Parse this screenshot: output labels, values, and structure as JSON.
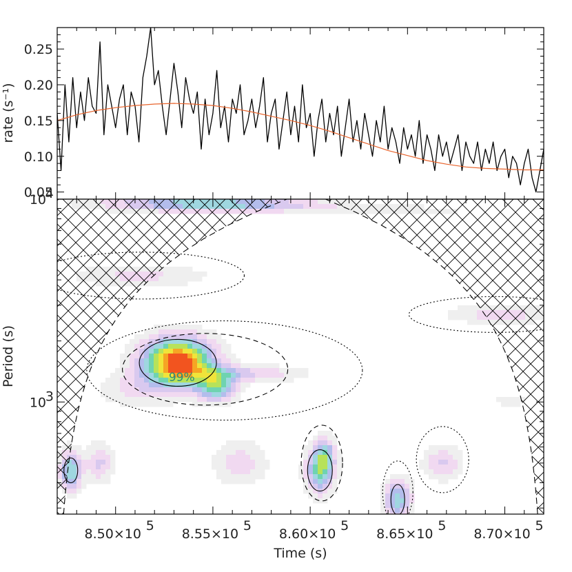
{
  "chart_data": [
    {
      "type": "line",
      "panel": "light curve",
      "xlabel": "",
      "ylabel": "rate (s⁻¹)",
      "xlim": [
        847000,
        872000
      ],
      "ylim": [
        0.04,
        0.28
      ],
      "yticks": [
        {
          "v": 0.05,
          "label": "0.05"
        },
        {
          "v": 0.1,
          "label": "0.10"
        },
        {
          "v": 0.15,
          "label": "0.15"
        },
        {
          "v": 0.2,
          "label": "0.20"
        },
        {
          "v": 0.25,
          "label": "0.25"
        }
      ],
      "series": [
        {
          "kind": "rate",
          "color": "#000000",
          "x": [
            847000,
            847200,
            847400,
            847600,
            847800,
            848000,
            848200,
            848400,
            848600,
            848800,
            849000,
            849200,
            849400,
            849600,
            849800,
            850000,
            850200,
            850400,
            850600,
            850800,
            851000,
            851200,
            851400,
            851600,
            851800,
            852000,
            852200,
            852400,
            852600,
            852800,
            853000,
            853200,
            853400,
            853600,
            853800,
            854000,
            854200,
            854400,
            854600,
            854800,
            855000,
            855200,
            855400,
            855600,
            855800,
            856000,
            856200,
            856400,
            856600,
            856800,
            857000,
            857200,
            857400,
            857600,
            857800,
            858000,
            858200,
            858400,
            858600,
            858800,
            859000,
            859200,
            859400,
            859600,
            859800,
            860000,
            860200,
            860400,
            860600,
            860800,
            861000,
            861200,
            861400,
            861600,
            861800,
            862000,
            862200,
            862400,
            862600,
            862800,
            863000,
            863200,
            863400,
            863600,
            863800,
            864000,
            864200,
            864400,
            864600,
            864800,
            865000,
            865200,
            865400,
            865600,
            865800,
            866000,
            866200,
            866400,
            866600,
            866800,
            867000,
            867200,
            867400,
            867600,
            867800,
            868000,
            868200,
            868400,
            868600,
            868800,
            869000,
            869200,
            869400,
            869600,
            869800,
            870000,
            870200,
            870400,
            870600,
            870800,
            871000,
            871200,
            871400,
            871600,
            871800,
            872000
          ],
          "y": [
            0.16,
            0.08,
            0.2,
            0.12,
            0.21,
            0.14,
            0.19,
            0.15,
            0.21,
            0.17,
            0.16,
            0.26,
            0.13,
            0.2,
            0.17,
            0.14,
            0.18,
            0.2,
            0.13,
            0.19,
            0.17,
            0.12,
            0.21,
            0.24,
            0.28,
            0.2,
            0.22,
            0.17,
            0.13,
            0.18,
            0.23,
            0.19,
            0.14,
            0.21,
            0.18,
            0.16,
            0.19,
            0.11,
            0.18,
            0.13,
            0.16,
            0.22,
            0.14,
            0.17,
            0.12,
            0.18,
            0.16,
            0.2,
            0.13,
            0.15,
            0.18,
            0.14,
            0.17,
            0.21,
            0.12,
            0.16,
            0.18,
            0.11,
            0.15,
            0.19,
            0.13,
            0.17,
            0.12,
            0.2,
            0.14,
            0.16,
            0.1,
            0.15,
            0.18,
            0.12,
            0.16,
            0.13,
            0.17,
            0.1,
            0.14,
            0.18,
            0.12,
            0.15,
            0.11,
            0.16,
            0.13,
            0.1,
            0.15,
            0.12,
            0.17,
            0.11,
            0.14,
            0.12,
            0.09,
            0.14,
            0.11,
            0.13,
            0.1,
            0.15,
            0.09,
            0.13,
            0.11,
            0.08,
            0.13,
            0.1,
            0.12,
            0.09,
            0.11,
            0.13,
            0.08,
            0.12,
            0.1,
            0.09,
            0.12,
            0.08,
            0.11,
            0.09,
            0.12,
            0.08,
            0.1,
            0.11,
            0.07,
            0.1,
            0.09,
            0.06,
            0.09,
            0.11,
            0.07,
            0.05,
            0.08,
            0.11
          ]
        },
        {
          "kind": "smoothed trend",
          "color": "#e8632b",
          "x": [
            847000,
            848000,
            849000,
            850000,
            851000,
            852000,
            853000,
            854000,
            855000,
            856000,
            857000,
            858000,
            859000,
            860000,
            861000,
            862000,
            863000,
            864000,
            865000,
            866000,
            867000,
            868000,
            869000,
            870000,
            871000,
            872000
          ],
          "y": [
            0.15,
            0.158,
            0.164,
            0.168,
            0.171,
            0.173,
            0.174,
            0.173,
            0.171,
            0.167,
            0.162,
            0.156,
            0.15,
            0.143,
            0.135,
            0.126,
            0.117,
            0.108,
            0.101,
            0.094,
            0.089,
            0.085,
            0.083,
            0.082,
            0.081,
            0.081
          ]
        }
      ]
    },
    {
      "type": "heatmap",
      "panel": "wavelet power spectrum",
      "xlabel": "Time (s)",
      "ylabel": "Period (s)",
      "xlim": [
        847000,
        872000
      ],
      "ylim": [
        280,
        10000
      ],
      "yscale": "log",
      "xticks": [
        {
          "v": 850000,
          "mant": "8.50×10",
          "exp": "5"
        },
        {
          "v": 855000,
          "mant": "8.55×10",
          "exp": "5"
        },
        {
          "v": 860000,
          "mant": "8.60×10",
          "exp": "5"
        },
        {
          "v": 865000,
          "mant": "8.65×10",
          "exp": "5"
        },
        {
          "v": 870000,
          "mant": "8.70×10",
          "exp": "5"
        }
      ],
      "yticks": [
        {
          "v": 1000,
          "mant": "10",
          "exp": "3"
        },
        {
          "v": 10000,
          "mant": "10",
          "exp": "4"
        }
      ],
      "significance_label": "99%",
      "significance_label_at": {
        "x": 853400,
        "period": 1330
      },
      "cone_of_influence": "hatched",
      "colormap": [
        "#efefef",
        "#f1d9f1",
        "#d9c9ef",
        "#b3bdec",
        "#9fd7e0",
        "#6fd3b0",
        "#b7e25a",
        "#f0e43a",
        "#f6a524",
        "#f2541f"
      ],
      "power_blobs": [
        {
          "x": 853200,
          "period": 1580,
          "sx": 1300,
          "sy": 0.085,
          "amp": 1.0
        },
        {
          "x": 855200,
          "period": 1180,
          "sx": 700,
          "sy": 0.05,
          "amp": 0.55
        },
        {
          "x": 856500,
          "period": 1380,
          "sx": 2200,
          "sy": 0.03,
          "amp": 0.28
        },
        {
          "x": 851000,
          "period": 1150,
          "sx": 1400,
          "sy": 0.06,
          "amp": 0.18
        },
        {
          "x": 860500,
          "period": 460,
          "sx": 500,
          "sy": 0.08,
          "amp": 0.6
        },
        {
          "x": 860800,
          "period": 560,
          "sx": 350,
          "sy": 0.06,
          "amp": 0.3
        },
        {
          "x": 847700,
          "period": 460,
          "sx": 400,
          "sy": 0.07,
          "amp": 0.55
        },
        {
          "x": 849200,
          "period": 500,
          "sx": 500,
          "sy": 0.07,
          "amp": 0.28
        },
        {
          "x": 864500,
          "period": 330,
          "sx": 500,
          "sy": 0.07,
          "amp": 0.5
        },
        {
          "x": 866800,
          "period": 500,
          "sx": 700,
          "sy": 0.06,
          "amp": 0.28
        },
        {
          "x": 856400,
          "period": 500,
          "sx": 1000,
          "sy": 0.08,
          "amp": 0.22
        },
        {
          "x": 853800,
          "period": 9600,
          "sx": 3500,
          "sy": 0.03,
          "amp": 0.38
        },
        {
          "x": 857000,
          "period": 9300,
          "sx": 3500,
          "sy": 0.025,
          "amp": 0.22
        },
        {
          "x": 851300,
          "period": 4200,
          "sx": 2500,
          "sy": 0.04,
          "amp": 0.2
        },
        {
          "x": 869800,
          "period": 2700,
          "sx": 2000,
          "sy": 0.035,
          "amp": 0.22
        },
        {
          "x": 864800,
          "period": 8800,
          "sx": 3000,
          "sy": 0.02,
          "amp": 0.12
        },
        {
          "x": 870300,
          "period": 1020,
          "sx": 700,
          "sy": 0.03,
          "amp": 0.12
        }
      ]
    }
  ]
}
